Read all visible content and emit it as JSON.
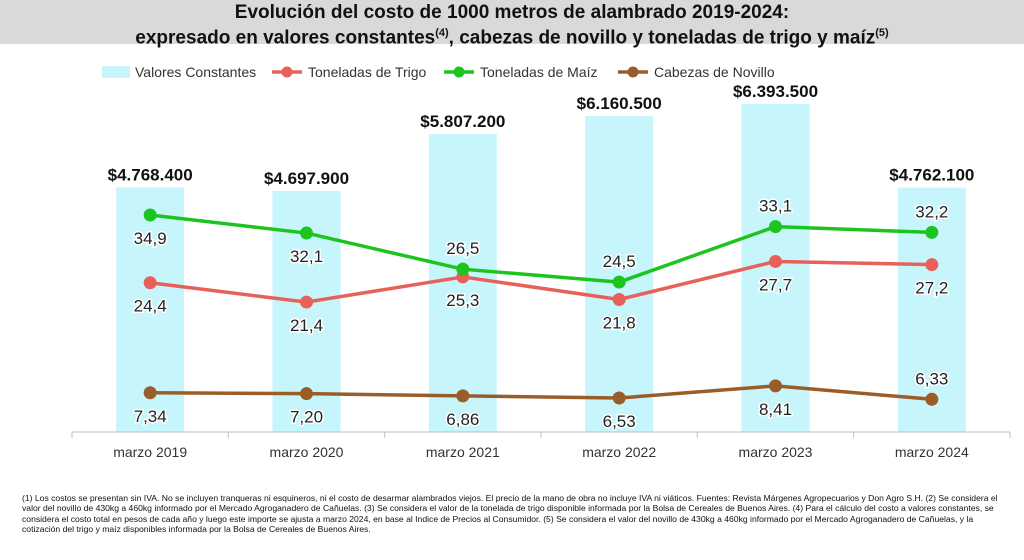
{
  "title": {
    "line1": "Evolución del costo de 1000 metros de alambrado 2019-2024:",
    "line2_text": "expresado en valores constantes",
    "line2_sup1": "(4)",
    "line2_text2": ", cabezas de novillo y toneladas de trigo y maíz",
    "line2_sup2": "(5)"
  },
  "chart_data": {
    "type": "bar",
    "title": "Evolución del costo de 1000 metros de alambrado 2019-2024: expresado en valores constantes(4), cabezas de novillo y toneladas de trigo y maíz(5)",
    "categories": [
      "marzo 2019",
      "marzo 2020",
      "marzo 2021",
      "marzo 2022",
      "marzo 2023",
      "marzo 2024"
    ],
    "bars": {
      "name": "Valores Constantes",
      "values": [
        4768400,
        4697900,
        5807200,
        6160500,
        6393500,
        4762100
      ],
      "labels": [
        "$4.768.400",
        "$4.697.900",
        "$5.807.200",
        "$6.160.500",
        "$6.393.500",
        "$4.762.100"
      ],
      "color": "#c6f6fb"
    },
    "series": [
      {
        "name": "Toneladas de Trigo",
        "type": "line",
        "values": [
          24.4,
          21.4,
          25.3,
          21.8,
          27.7,
          27.2
        ],
        "labels": [
          "24,4",
          "21,4",
          "25,3",
          "21,8",
          "27,7",
          "27,2"
        ],
        "color": "#e8605a"
      },
      {
        "name": "Toneladas de Maíz",
        "type": "line",
        "values": [
          34.9,
          32.1,
          26.5,
          24.5,
          33.1,
          32.2
        ],
        "labels": [
          "34,9",
          "32,1",
          "26,5",
          "24,5",
          "33,1",
          "32,2"
        ],
        "color": "#1ec41e"
      },
      {
        "name": "Cabezas de Novillo",
        "type": "line",
        "values": [
          7.34,
          7.2,
          6.86,
          6.53,
          8.41,
          6.33
        ],
        "labels": [
          "7,34",
          "7,20",
          "6,86",
          "6,53",
          "8,41",
          "6,33"
        ],
        "color": "#9a5d2a"
      }
    ],
    "legend_position": "top",
    "grid": false
  },
  "footnote": "(1) Los costos se presentan sin IVA. No se incluyen tranqueras ni esquineros, ni el costo de desarmar alambrados viejos. El precio de la mano de obra no incluye IVA ni viáticos. Fuentes: Revista Márgenes Agropecuarios y Don Agro S.H. (2) Se considera el valor del novillo de 430kg a 460kg informado por el Mercado Agroganadero de Cañuelas. (3) Se considera el valor de la tonelada de trigo disponible informada por la Bolsa de Cereales de Buenos Aires. (4) Para el cálculo del costo a valores constantes, se considera el costo total en pesos de cada año y luego este importe se ajusta a marzo 2024, en base al Indice de Precios al Consumidor. (5) Se considera el valor del novillo de 430kg a 460kg informado por el Mercado Agroganadero de Cañuelas, y la cotización del trigo y maíz disponibles informada por la Bolsa de Cereales de Buenos Aires."
}
